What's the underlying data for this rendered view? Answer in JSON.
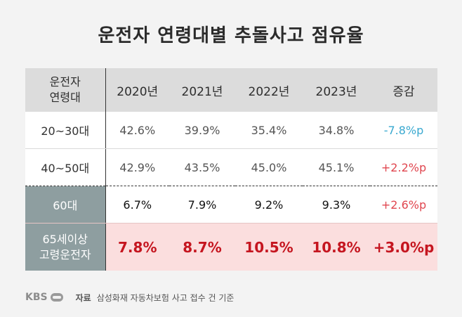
{
  "chart_data": {
    "type": "table",
    "title": "운전자 연령대별 추돌사고 점유율",
    "header": {
      "row_label_line1": "운전자",
      "row_label_line2": "연령대",
      "columns": [
        "2020년",
        "2021년",
        "2022년",
        "2023년",
        "증감"
      ]
    },
    "rows": [
      {
        "label": "20~30대",
        "values": [
          "42.6%",
          "39.9%",
          "35.4%",
          "34.8%"
        ],
        "change": "-7.8%p"
      },
      {
        "label": "40~50대",
        "values": [
          "42.9%",
          "43.5%",
          "45.0%",
          "45.1%"
        ],
        "change": "+2.2%p"
      },
      {
        "label": "60대",
        "values": [
          "6.7%",
          "7.9%",
          "9.2%",
          "9.3%"
        ],
        "change": "+2.6%p"
      },
      {
        "label_line1": "65세이상",
        "label_line2": "고령운전자",
        "values": [
          "7.8%",
          "8.7%",
          "10.5%",
          "10.8%"
        ],
        "change": "+3.0%p"
      }
    ]
  },
  "footer": {
    "logo": "KBS",
    "source_label": "자료",
    "source_text": "삼성화재 자동차보험 사고 접수 건 기준"
  },
  "colors": {
    "negative": "#3aa9d0",
    "positive": "#e0464f",
    "highlight_text": "#c51620",
    "highlight_bg": "#fbdede",
    "label_bg": "#8e9ea0"
  }
}
